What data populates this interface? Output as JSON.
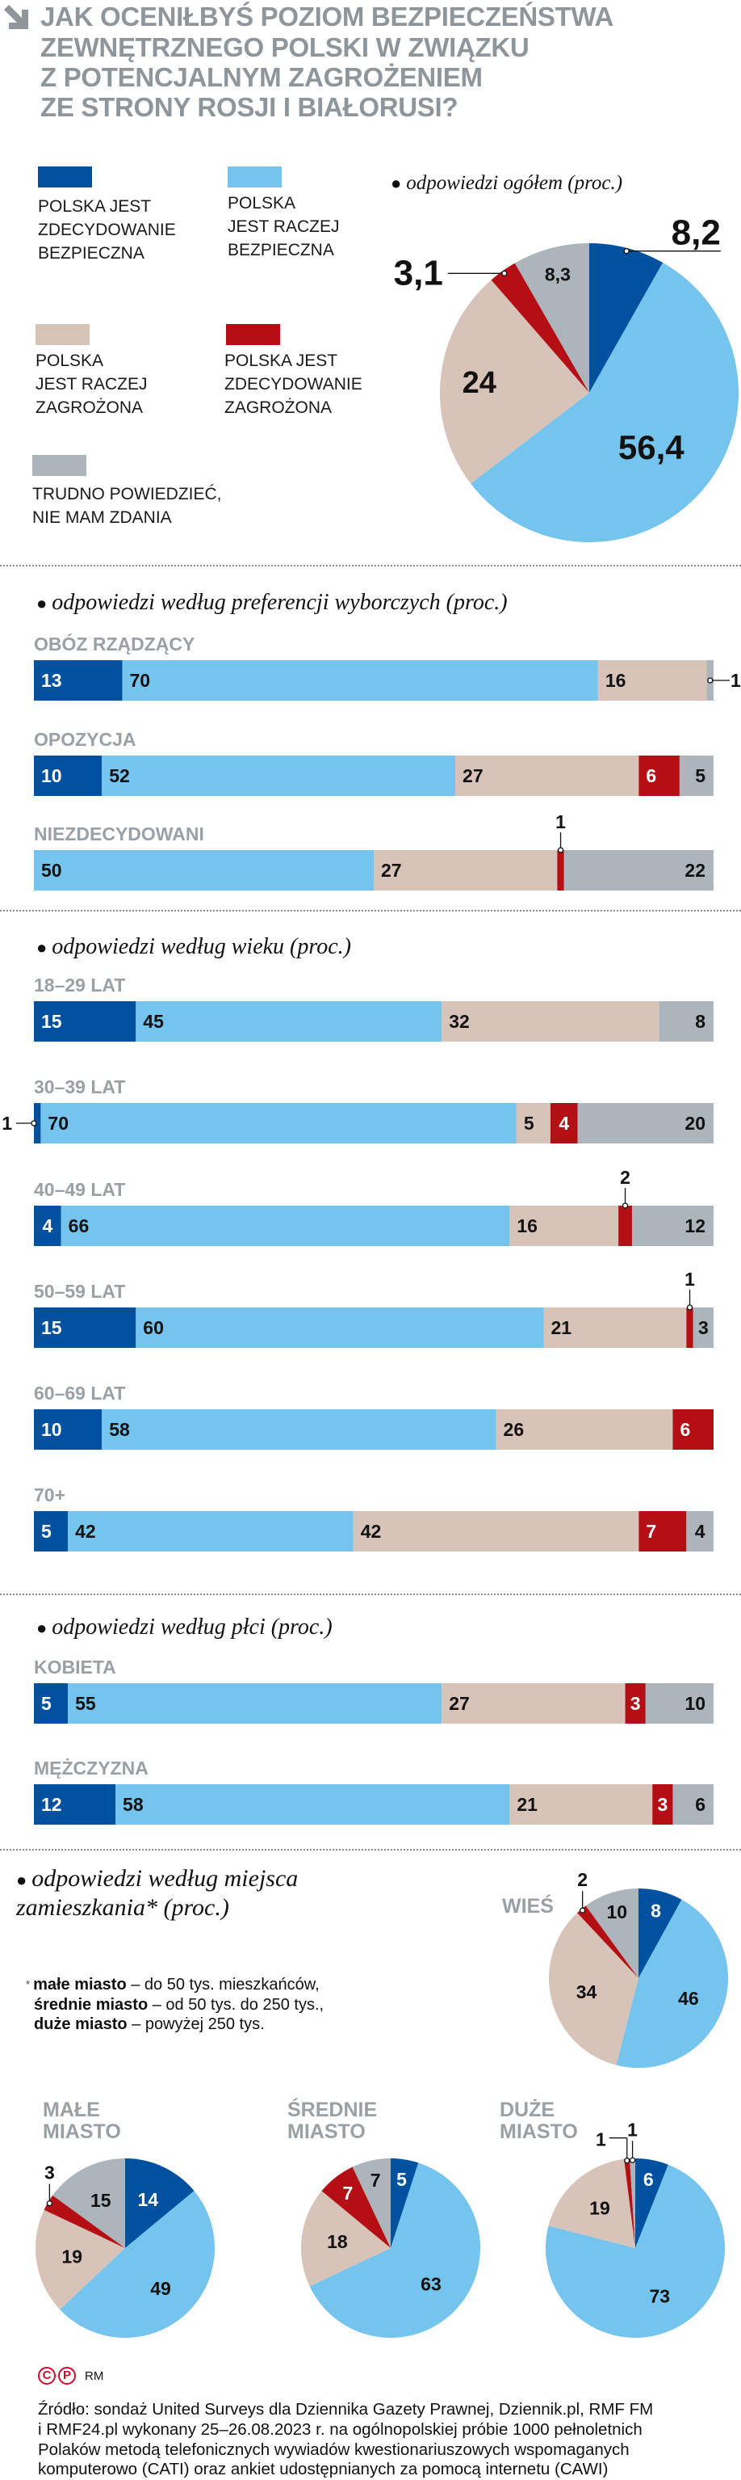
{
  "title_lines": [
    "JAK OCENIŁBYŚ POZIOM BEZPIECZEŃSTWA",
    "ZEWNĘTRZNEGO POLSKI W ZWIĄZKU",
    "Z POTENCJALNYM ZAGROŻENIEM",
    "ZE STRONY ROSJI I BIAŁORUSI?"
  ],
  "icons": {
    "title": "arrow-down-right-icon",
    "section_bullet": "bullet-icon"
  },
  "colors": {
    "zdecydowanie_bezpieczna": "#0052a0",
    "raczej_bezpieczna": "#74c4ee",
    "raczej_zagrozona": "#d8c3b9",
    "zdecydowanie_zagrozona": "#b30f15",
    "trudno_powiedziec": "#acb5bb",
    "title_gray": "#8e969b"
  },
  "legend": [
    {
      "label": "POLSKA JEST\nZDECYDOWANIE\nBEZPIECZNA"
    },
    {
      "label": "POLSKA\nJEST RACZEJ\nBEZPIECZNA"
    },
    {
      "label": "POLSKA\nJEST RACZEJ\nZAGROŻONA"
    },
    {
      "label": "POLSKA JEST\nZDECYDOWANIE\nZAGROŻONA"
    },
    {
      "label": "TRUDNO POWIEDZIEĆ,\nNIE MAM ZDANIA"
    }
  ],
  "chart_data": [
    {
      "type": "pie",
      "title": "odpowiedzi ogółem (proc.)",
      "categories": [
        "POLSKA JEST ZDECYDOWANIE BEZPIECZNA",
        "POLSKA JEST RACZEJ BEZPIECZNA",
        "POLSKA JEST RACZEJ ZAGROŻONA",
        "POLSKA JEST ZDECYDOWANIE ZAGROŻONA",
        "TRUDNO POWIEDZIEĆ, NIE MAM ZDANIA"
      ],
      "values": [
        8.2,
        56.4,
        24,
        3.1,
        8.3
      ]
    },
    {
      "type": "bar",
      "stacked": true,
      "orientation": "horizontal",
      "title": "odpowiedzi według preferencji wyborczych (proc.)",
      "categories": [
        "OBÓZ RZĄDZĄCY",
        "OPOZYCJA",
        "NIEZDECYDOWANI"
      ],
      "series": [
        {
          "name": "POLSKA JEST ZDECYDOWANIE BEZPIECZNA",
          "values": [
            13,
            10,
            0
          ]
        },
        {
          "name": "POLSKA JEST RACZEJ BEZPIECZNA",
          "values": [
            70,
            52,
            50
          ]
        },
        {
          "name": "POLSKA JEST RACZEJ ZAGROŻONA",
          "values": [
            16,
            27,
            27
          ]
        },
        {
          "name": "POLSKA JEST ZDECYDOWANIE ZAGROŻONA",
          "values": [
            0,
            6,
            1
          ]
        },
        {
          "name": "TRUDNO POWIEDZIEĆ, NIE MAM ZDANIA",
          "values": [
            1,
            5,
            22
          ]
        }
      ]
    },
    {
      "type": "bar",
      "stacked": true,
      "orientation": "horizontal",
      "title": "odpowiedzi według wieku (proc.)",
      "categories": [
        "18–29 LAT",
        "30–39 LAT",
        "40–49 LAT",
        "50–59 LAT",
        "60–69 LAT",
        "70+"
      ],
      "series": [
        {
          "name": "POLSKA JEST ZDECYDOWANIE BEZPIECZNA",
          "values": [
            15,
            1,
            4,
            15,
            10,
            5
          ]
        },
        {
          "name": "POLSKA JEST RACZEJ BEZPIECZNA",
          "values": [
            45,
            70,
            66,
            60,
            58,
            42
          ]
        },
        {
          "name": "POLSKA JEST RACZEJ ZAGROŻONA",
          "values": [
            32,
            5,
            16,
            21,
            26,
            42
          ]
        },
        {
          "name": "POLSKA JEST ZDECYDOWANIE ZAGROŻONA",
          "values": [
            0,
            4,
            2,
            1,
            6,
            7
          ]
        },
        {
          "name": "TRUDNO POWIEDZIEĆ, NIE MAM ZDANIA",
          "values": [
            8,
            20,
            12,
            3,
            0,
            4
          ]
        }
      ]
    },
    {
      "type": "bar",
      "stacked": true,
      "orientation": "horizontal",
      "title": "odpowiedzi według płci (proc.)",
      "categories": [
        "KOBIETA",
        "MĘŻCZYZNA"
      ],
      "series": [
        {
          "name": "POLSKA JEST ZDECYDOWANIE BEZPIECZNA",
          "values": [
            5,
            12
          ]
        },
        {
          "name": "POLSKA JEST RACZEJ BEZPIECZNA",
          "values": [
            55,
            58
          ]
        },
        {
          "name": "POLSKA JEST RACZEJ ZAGROŻONA",
          "values": [
            27,
            21
          ]
        },
        {
          "name": "POLSKA JEST ZDECYDOWANIE ZAGROŻONA",
          "values": [
            3,
            3
          ]
        },
        {
          "name": "TRUDNO POWIEDZIEĆ, NIE MAM ZDANIA",
          "values": [
            10,
            6
          ]
        }
      ]
    },
    {
      "type": "pie",
      "title": "odpowiedzi według miejsca zamieszkania* (proc.)",
      "categories": [
        "POLSKA JEST ZDECYDOWANIE BEZPIECZNA",
        "POLSKA JEST RACZEJ BEZPIECZNA",
        "POLSKA JEST RACZEJ ZAGROŻONA",
        "POLSKA JEST ZDECYDOWANIE ZAGROŻONA",
        "TRUDNO POWIEDZIEĆ, NIE MAM ZDANIA"
      ],
      "groups": [
        {
          "label": "WIEŚ",
          "values": [
            8,
            46,
            34,
            2,
            10
          ]
        },
        {
          "label": "MAŁE MIASTO",
          "values": [
            14,
            49,
            19,
            3,
            15
          ]
        },
        {
          "label": "ŚREDNIE MIASTO",
          "values": [
            5,
            63,
            18,
            7,
            7
          ]
        },
        {
          "label": "DUŻE MIASTO",
          "values": [
            6,
            73,
            19,
            1,
            1
          ]
        }
      ]
    }
  ],
  "footnote": {
    "marker": "*",
    "items": [
      {
        "term": "małe miasto",
        "desc": " – do 50 tys. mieszkańców,"
      },
      {
        "term": "średnie miasto",
        "desc": " – od 50 tys. do 250 tys.,"
      },
      {
        "term": "duże miasto",
        "desc": " – powyżej 250 tys."
      }
    ]
  },
  "logo": {
    "c": "C",
    "p": "P",
    "author": "RM"
  },
  "source_lines": [
    "Źródło: sondaż United Surveys dla Dziennika Gazety Prawnej, Dziennik.pl, RMF FM",
    "i RMF24.pl wykonany 25–26.08.2023 r. na ogólnopolskiej próbie 1000 pełnoletnich",
    "Polaków metodą telefonicznych wywiadów kwestionariuszowych wspomaganych",
    "komputerowo (CATI) oraz ankiet udostępnianych za pomocą internetu (CAWI)"
  ]
}
